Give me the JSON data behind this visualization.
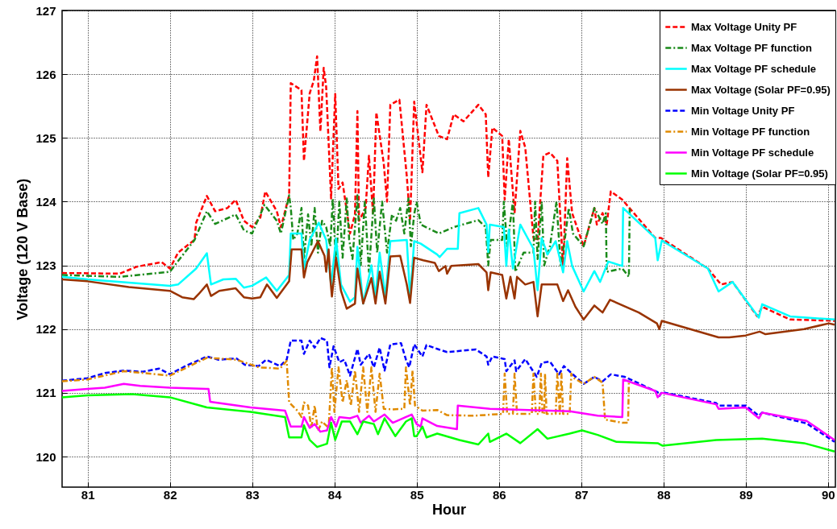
{
  "chart_data": {
    "type": "line",
    "xlabel": "Hour",
    "ylabel": "Voltage (120 V Base)",
    "xlim": [
      80.69,
      90.09
    ],
    "ylim": [
      119.52,
      127
    ],
    "xticks": [
      81,
      82,
      83,
      84,
      85,
      86,
      87,
      88,
      89,
      90
    ],
    "yticks": [
      120,
      121,
      122,
      123,
      124,
      125,
      126,
      127
    ],
    "grid": true,
    "legend": "top right",
    "marker": "none",
    "series": [
      {
        "name": "Max Voltage Unity PF",
        "color": "#ff0000",
        "line_style": "dashed",
        "x": [
          80.69,
          81.39,
          81.6,
          81.9,
          82.0,
          82.1,
          82.3,
          82.32,
          82.45,
          82.55,
          82.7,
          82.8,
          82.9,
          83.0,
          83.1,
          83.16,
          83.3,
          83.35,
          83.45,
          83.47,
          83.6,
          83.63,
          83.7,
          83.75,
          83.79,
          83.83,
          83.87,
          83.9,
          83.96,
          84.01,
          84.05,
          84.1,
          84.19,
          84.25,
          84.28,
          84.3,
          84.38,
          84.42,
          84.47,
          84.51,
          84.6,
          84.64,
          84.68,
          84.79,
          84.88,
          84.92,
          84.97,
          85.07,
          85.12,
          85.27,
          85.37,
          85.45,
          85.57,
          85.75,
          85.84,
          85.87,
          85.92,
          86.04,
          86.07,
          86.12,
          86.19,
          86.26,
          86.32,
          86.42,
          86.47,
          86.54,
          86.62,
          86.71,
          86.78,
          86.83,
          86.89,
          87.03,
          87.16,
          87.19,
          87.26,
          87.31,
          87.36,
          87.5,
          87.9,
          87.97,
          88.54,
          88.7,
          88.84,
          89.14,
          89.2,
          89.54,
          90.08
        ],
        "values": [
          122.88,
          122.87,
          122.98,
          123.05,
          122.95,
          123.2,
          123.4,
          123.67,
          124.09,
          123.85,
          123.9,
          124.03,
          123.7,
          123.6,
          123.75,
          124.16,
          123.85,
          123.6,
          124.1,
          125.86,
          125.75,
          124.64,
          125.7,
          125.9,
          126.28,
          125.1,
          126.1,
          125.8,
          124.05,
          125.69,
          124.2,
          124.3,
          123.5,
          123.8,
          125.42,
          123.7,
          123.9,
          124.72,
          123.8,
          125.4,
          124.6,
          124.0,
          125.52,
          125.6,
          124.4,
          123.7,
          125.57,
          124.46,
          125.52,
          125.03,
          124.98,
          125.37,
          125.26,
          125.52,
          125.37,
          124.38,
          125.16,
          125.03,
          124.03,
          124.98,
          123.82,
          125.11,
          124.85,
          123.43,
          123.39,
          124.72,
          124.77,
          124.64,
          122.95,
          124.68,
          123.82,
          123.3,
          123.9,
          123.64,
          123.82,
          123.64,
          124.16,
          124.03,
          123.43,
          123.43,
          122.95,
          122.7,
          122.74,
          122.2,
          122.35,
          122.15,
          122.13
        ]
      },
      {
        "name": "Max Voltage PF function",
        "color": "#1a8a1a",
        "line_style": "dotted",
        "x": [
          80.69,
          81.4,
          82.0,
          82.3,
          82.45,
          82.55,
          82.8,
          82.9,
          83.0,
          83.15,
          83.3,
          83.35,
          83.45,
          83.47,
          83.5,
          83.55,
          83.6,
          83.63,
          83.68,
          83.72,
          83.76,
          83.8,
          83.85,
          83.9,
          83.95,
          83.98,
          84.02,
          84.06,
          84.1,
          84.15,
          84.18,
          84.22,
          84.28,
          84.32,
          84.37,
          84.42,
          84.48,
          84.52,
          84.58,
          84.64,
          84.7,
          84.75,
          84.8,
          84.85,
          84.9,
          84.93,
          84.97,
          85.0,
          85.05,
          85.27,
          85.45,
          85.75,
          85.84,
          85.87,
          85.9,
          86.04,
          86.06,
          86.1,
          86.17,
          86.2,
          86.3,
          86.42,
          86.44,
          86.47,
          86.52,
          86.55,
          86.62,
          86.7,
          86.75,
          86.8,
          86.85,
          86.9,
          87.03,
          87.16,
          87.26,
          87.3,
          87.31,
          87.5,
          87.58,
          87.59
        ],
        "values": [
          122.85,
          122.82,
          122.9,
          123.4,
          123.85,
          123.65,
          123.8,
          123.55,
          123.5,
          123.95,
          123.7,
          123.5,
          124.1,
          123.9,
          123.4,
          123.5,
          123.9,
          123.1,
          123.8,
          123.3,
          123.9,
          123.2,
          123.7,
          123.6,
          123.3,
          124.05,
          123.0,
          124.0,
          123.12,
          124.05,
          123.4,
          123.1,
          124.1,
          123.0,
          124.0,
          122.9,
          124.05,
          123.2,
          124.0,
          123.2,
          123.8,
          123.7,
          123.9,
          123.5,
          124.05,
          123.3,
          123.8,
          124.0,
          123.64,
          123.5,
          123.6,
          123.71,
          123.6,
          123.0,
          123.4,
          123.4,
          124.0,
          123.3,
          124.0,
          122.9,
          123.2,
          123.2,
          124.0,
          123.1,
          124.0,
          123.0,
          123.3,
          124.0,
          123.0,
          123.4,
          123.9,
          123.5,
          123.3,
          123.9,
          123.65,
          123.82,
          122.9,
          122.95,
          122.82,
          123.9
        ]
      },
      {
        "name": "Max Voltage PF schedule",
        "color": "#00ffff",
        "line_style": "solid",
        "x": [
          80.69,
          81.0,
          82.0,
          82.1,
          82.32,
          82.45,
          82.5,
          82.65,
          82.8,
          82.9,
          83.0,
          83.17,
          83.3,
          83.45,
          83.47,
          83.6,
          83.63,
          83.7,
          83.81,
          83.9,
          83.96,
          84.02,
          84.08,
          84.19,
          84.25,
          84.28,
          84.35,
          84.45,
          84.5,
          84.55,
          84.62,
          84.68,
          84.88,
          84.92,
          84.97,
          85.05,
          85.25,
          85.28,
          85.37,
          85.5,
          85.52,
          85.75,
          85.85,
          85.87,
          85.89,
          86.06,
          86.09,
          86.12,
          86.17,
          86.26,
          86.42,
          86.47,
          86.52,
          86.59,
          86.69,
          86.78,
          86.83,
          86.89,
          87.03,
          87.16,
          87.23,
          87.33,
          87.5,
          87.51,
          87.9,
          87.93,
          87.98,
          88.54,
          88.67,
          88.84,
          89.16,
          89.2,
          89.54,
          90.08
        ],
        "values": [
          122.82,
          122.78,
          122.68,
          122.7,
          122.95,
          123.19,
          122.7,
          122.78,
          122.79,
          122.65,
          122.68,
          122.81,
          122.6,
          122.85,
          123.5,
          123.5,
          122.95,
          123.4,
          123.67,
          123.4,
          122.7,
          123.42,
          122.7,
          122.43,
          122.5,
          123.29,
          122.4,
          123.0,
          122.5,
          123.2,
          122.5,
          123.38,
          123.4,
          122.49,
          123.38,
          123.34,
          123.17,
          123.13,
          123.26,
          123.26,
          123.82,
          123.9,
          123.64,
          123.21,
          123.64,
          123.6,
          122.99,
          123.56,
          122.95,
          123.64,
          123.26,
          122.61,
          123.43,
          123.17,
          123.38,
          122.89,
          123.38,
          122.99,
          122.59,
          122.91,
          122.74,
          123.06,
          122.99,
          123.9,
          123.43,
          123.08,
          123.39,
          122.95,
          122.59,
          122.74,
          122.18,
          122.39,
          122.2,
          122.15
        ]
      },
      {
        "name": "Max Voltage (Solar PF=0.95)",
        "color": "#993300",
        "line_style": "solid",
        "x": [
          80.69,
          81.0,
          81.5,
          82.0,
          82.15,
          82.29,
          82.35,
          82.45,
          82.5,
          82.6,
          82.8,
          82.9,
          83.0,
          83.1,
          83.18,
          83.3,
          83.45,
          83.48,
          83.6,
          83.63,
          83.67,
          83.8,
          83.88,
          83.9,
          83.93,
          83.95,
          83.97,
          84.02,
          84.08,
          84.15,
          84.25,
          84.28,
          84.35,
          84.45,
          84.5,
          84.55,
          84.62,
          84.68,
          84.8,
          84.88,
          84.92,
          84.97,
          85.08,
          85.22,
          85.27,
          85.35,
          85.37,
          85.42,
          85.75,
          85.85,
          85.87,
          85.9,
          86.04,
          86.09,
          86.14,
          86.19,
          86.22,
          86.32,
          86.42,
          86.47,
          86.52,
          86.71,
          86.78,
          86.84,
          86.93,
          87.03,
          87.16,
          87.26,
          87.35,
          87.7,
          87.92,
          87.95,
          87.98,
          88.67,
          88.8,
          89.0,
          89.17,
          89.24,
          89.71,
          90.01,
          90.08
        ],
        "values": [
          122.78,
          122.75,
          122.66,
          122.6,
          122.5,
          122.47,
          122.55,
          122.7,
          122.52,
          122.6,
          122.64,
          122.5,
          122.48,
          122.5,
          122.7,
          122.49,
          122.75,
          123.25,
          123.25,
          122.81,
          123.05,
          123.38,
          123.15,
          122.9,
          123.25,
          122.8,
          122.51,
          123.12,
          122.6,
          122.32,
          122.4,
          122.95,
          122.4,
          122.8,
          122.4,
          122.9,
          122.4,
          123.14,
          123.15,
          122.7,
          122.41,
          123.12,
          123.08,
          123.04,
          122.91,
          122.99,
          122.87,
          122.99,
          123.02,
          122.89,
          122.61,
          122.89,
          122.85,
          122.48,
          122.82,
          122.48,
          122.82,
          122.7,
          122.74,
          122.2,
          122.7,
          122.7,
          122.44,
          122.61,
          122.35,
          122.15,
          122.37,
          122.26,
          122.46,
          122.26,
          122.09,
          122.0,
          122.13,
          121.87,
          121.87,
          121.9,
          121.96,
          121.92,
          122.0,
          122.09,
          122.07
        ]
      },
      {
        "name": "Min Voltage Unity PF",
        "color": "#0000ff",
        "line_style": "dashed",
        "x": [
          80.69,
          81.0,
          81.21,
          81.44,
          81.67,
          81.87,
          82.0,
          82.19,
          82.45,
          82.59,
          82.81,
          82.91,
          83.08,
          83.17,
          83.34,
          83.42,
          83.47,
          83.6,
          83.63,
          83.7,
          83.76,
          83.83,
          83.91,
          83.94,
          83.99,
          84.06,
          84.12,
          84.19,
          84.28,
          84.32,
          84.42,
          84.48,
          84.55,
          84.61,
          84.68,
          84.81,
          84.87,
          84.91,
          84.97,
          85.07,
          85.12,
          85.27,
          85.37,
          85.72,
          85.85,
          85.87,
          85.92,
          86.07,
          86.09,
          86.19,
          86.21,
          86.32,
          86.46,
          86.52,
          86.62,
          86.73,
          86.79,
          86.88,
          87.03,
          87.16,
          87.26,
          87.36,
          87.53,
          87.93,
          87.95,
          87.98,
          88.64,
          88.67,
          89.0,
          89.16,
          89.2,
          89.74,
          90.08
        ],
        "values": [
          121.19,
          121.23,
          121.31,
          121.35,
          121.33,
          121.38,
          121.29,
          121.42,
          121.57,
          121.52,
          121.54,
          121.44,
          121.42,
          121.52,
          121.42,
          121.52,
          121.82,
          121.82,
          121.61,
          121.82,
          121.71,
          121.86,
          121.82,
          121.4,
          121.73,
          121.48,
          121.52,
          121.27,
          121.69,
          121.44,
          121.61,
          121.4,
          121.71,
          121.35,
          121.76,
          121.78,
          121.52,
          121.4,
          121.76,
          121.57,
          121.75,
          121.68,
          121.64,
          121.68,
          121.57,
          121.44,
          121.57,
          121.53,
          121.34,
          121.51,
          121.34,
          121.53,
          121.25,
          121.47,
          121.49,
          121.29,
          121.42,
          121.31,
          121.14,
          121.25,
          121.18,
          121.29,
          121.25,
          121.01,
          120.95,
          121.01,
          120.84,
          120.8,
          120.8,
          120.64,
          120.69,
          120.52,
          120.23
        ]
      },
      {
        "name": "Min Voltage PF function",
        "color": "#e08a00",
        "line_style": "dotted",
        "x": [
          80.69,
          81.0,
          81.44,
          82.0,
          82.45,
          82.81,
          83.08,
          83.34,
          83.42,
          83.45,
          83.55,
          83.6,
          83.63,
          83.68,
          83.72,
          83.76,
          83.8,
          83.85,
          83.93,
          83.97,
          84.0,
          84.05,
          84.1,
          84.15,
          84.2,
          84.25,
          84.3,
          84.35,
          84.4,
          84.45,
          84.5,
          84.55,
          84.6,
          84.7,
          84.85,
          84.87,
          84.92,
          84.95,
          84.98,
          85.07,
          85.25,
          85.37,
          85.69,
          86.05,
          86.07,
          86.1,
          86.17,
          86.19,
          86.22,
          86.4,
          86.42,
          86.45,
          86.49,
          86.51,
          86.53,
          86.55,
          86.56,
          86.58,
          86.69,
          86.71,
          86.74,
          86.76,
          86.78,
          86.86,
          86.88,
          86.89,
          87.03,
          87.16,
          87.26,
          87.29,
          87.5,
          87.57,
          87.58
        ],
        "values": [
          121.18,
          121.21,
          121.34,
          121.27,
          121.55,
          121.52,
          121.4,
          121.38,
          121.5,
          120.85,
          120.72,
          120.62,
          120.85,
          120.8,
          120.45,
          120.8,
          120.4,
          120.55,
          120.45,
          121.4,
          120.7,
          121.4,
          120.85,
          121.2,
          120.8,
          121.35,
          120.7,
          121.4,
          120.7,
          121.4,
          120.7,
          121.3,
          120.75,
          120.74,
          120.75,
          121.4,
          120.8,
          121.35,
          120.8,
          120.72,
          120.73,
          120.65,
          120.64,
          120.67,
          121.3,
          120.67,
          120.67,
          121.3,
          120.67,
          120.67,
          121.3,
          120.67,
          120.67,
          121.3,
          120.67,
          120.67,
          121.3,
          120.67,
          120.67,
          121.3,
          120.67,
          121.3,
          120.67,
          120.67,
          121.3,
          121.25,
          121.14,
          121.25,
          121.16,
          120.58,
          120.53,
          120.53,
          121.2
        ]
      },
      {
        "name": "Min Voltage PF schedule",
        "color": "#ff00ff",
        "line_style": "solid",
        "x": [
          80.69,
          81.0,
          81.21,
          81.44,
          81.64,
          82.0,
          82.47,
          82.49,
          82.98,
          83.4,
          83.47,
          83.6,
          83.63,
          83.7,
          83.76,
          83.83,
          83.91,
          83.96,
          84.02,
          84.06,
          84.19,
          84.28,
          84.32,
          84.42,
          84.48,
          84.61,
          84.71,
          84.87,
          84.94,
          85.0,
          85.05,
          85.07,
          85.25,
          85.49,
          85.5,
          85.89,
          86.36,
          86.86,
          87.2,
          87.5,
          87.51,
          87.9,
          87.93,
          87.98,
          88.64,
          88.67,
          89.0,
          89.16,
          89.2,
          89.74,
          90.08
        ],
        "values": [
          121.03,
          121.06,
          121.08,
          121.14,
          121.11,
          121.08,
          121.06,
          120.86,
          120.77,
          120.72,
          120.47,
          120.47,
          120.62,
          120.45,
          120.51,
          120.39,
          120.41,
          120.62,
          120.47,
          120.62,
          120.6,
          120.64,
          120.53,
          120.64,
          120.55,
          120.66,
          120.53,
          120.62,
          120.66,
          120.51,
          120.47,
          120.6,
          120.48,
          120.43,
          120.8,
          120.75,
          120.73,
          120.71,
          120.64,
          120.62,
          121.21,
          121.03,
          120.93,
          121.0,
          120.82,
          120.75,
          120.77,
          120.6,
          120.69,
          120.56,
          120.26
        ]
      },
      {
        "name": "Min Voltage (Solar PF=0.95)",
        "color": "#00ff00",
        "line_style": "solid",
        "x": [
          80.69,
          81.0,
          81.54,
          82.0,
          82.45,
          82.98,
          83.4,
          83.45,
          83.6,
          83.63,
          83.7,
          83.79,
          83.91,
          83.96,
          84.01,
          84.09,
          84.19,
          84.28,
          84.35,
          84.48,
          84.53,
          84.61,
          84.74,
          84.87,
          84.94,
          84.97,
          85.0,
          85.07,
          85.12,
          85.25,
          85.52,
          85.75,
          85.87,
          85.89,
          86.09,
          86.26,
          86.47,
          86.59,
          86.86,
          87.01,
          87.2,
          87.43,
          87.93,
          87.99,
          88.64,
          89.2,
          89.71,
          90.08
        ],
        "values": [
          120.93,
          120.96,
          120.98,
          120.93,
          120.77,
          120.7,
          120.62,
          120.3,
          120.3,
          120.49,
          120.26,
          120.15,
          120.2,
          120.53,
          120.26,
          120.55,
          120.55,
          120.35,
          120.55,
          120.51,
          120.35,
          120.6,
          120.32,
          120.55,
          120.6,
          120.32,
          120.32,
          120.47,
          120.3,
          120.36,
          120.26,
          120.19,
          120.36,
          120.23,
          120.36,
          120.21,
          120.43,
          120.28,
          120.36,
          120.41,
          120.34,
          120.23,
          120.21,
          120.17,
          120.26,
          120.28,
          120.21,
          120.08
        ]
      }
    ]
  }
}
